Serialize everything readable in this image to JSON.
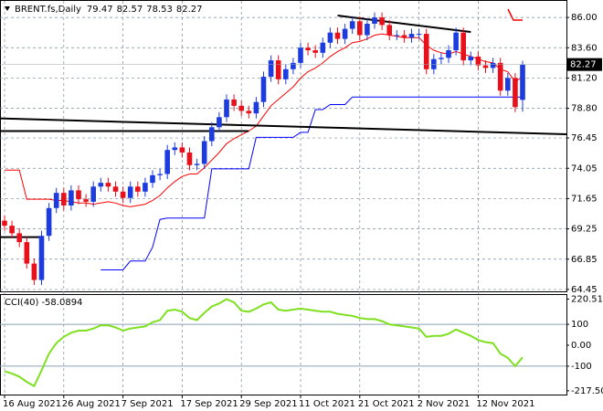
{
  "chart_data": [
    {
      "type": "candlestick",
      "title": "BRENT.fs,Daily",
      "categories": [
        "16 Aug 2021",
        null,
        null,
        null,
        null,
        null,
        null,
        null,
        "26 Aug 2021",
        null,
        null,
        null,
        null,
        null,
        null,
        null,
        "7 Sep 2021",
        null,
        null,
        null,
        null,
        null,
        null,
        null,
        "17 Sep 2021",
        null,
        null,
        null,
        null,
        null,
        null,
        null,
        "29 Sep 2021",
        null,
        null,
        null,
        null,
        null,
        null,
        null,
        "11 Oct 2021",
        null,
        null,
        null,
        null,
        null,
        null,
        null,
        "21 Oct 2021",
        null,
        null,
        null,
        null,
        null,
        null,
        null,
        "2 Nov 2021",
        null,
        null,
        null,
        null,
        null,
        null,
        null,
        "12 Nov 2021",
        null,
        null,
        null,
        null,
        null,
        null
      ],
      "open": [
        69.9,
        69.5,
        68.9,
        68.2,
        66.5,
        65.2,
        68.7,
        70.9,
        72.1,
        71.1,
        72.3,
        71.6,
        71.4,
        72.6,
        72.9,
        72.6,
        72.2,
        71.7,
        72.6,
        72.2,
        72.9,
        73.5,
        73.6,
        75.5,
        75.7,
        75.3,
        74.3,
        74.4,
        76.2,
        77.3,
        78.1,
        79.5,
        79.0,
        78.6,
        78.4,
        79.3,
        81.3,
        82.6,
        81.1,
        81.9,
        82.4,
        83.6,
        83.4,
        83.2,
        84.0,
        84.8,
        84.3,
        85.1,
        85.7,
        84.6,
        85.5,
        86.0,
        85.4,
        84.6,
        84.6,
        84.4,
        84.7,
        84.7,
        81.9,
        82.7,
        82.8,
        83.4,
        84.8,
        82.6,
        82.9,
        82.2,
        82.0,
        82.4,
        80.2,
        81.2,
        79.47
      ],
      "high": [
        70.3,
        69.9,
        69.3,
        68.6,
        66.9,
        69.1,
        71.3,
        72.5,
        72.5,
        72.7,
        72.7,
        72.0,
        73.0,
        73.3,
        73.3,
        73.0,
        72.6,
        73.0,
        73.0,
        73.3,
        73.9,
        74.0,
        75.9,
        76.1,
        76.1,
        75.7,
        74.8,
        76.6,
        77.7,
        78.5,
        79.9,
        79.9,
        79.4,
        79.0,
        79.7,
        81.7,
        83.0,
        83.0,
        82.3,
        82.8,
        84.0,
        84.0,
        83.8,
        84.4,
        85.2,
        85.2,
        85.5,
        86.1,
        86.1,
        85.9,
        86.4,
        86.4,
        85.8,
        85.0,
        85.0,
        85.1,
        85.1,
        85.1,
        83.1,
        83.2,
        83.8,
        85.2,
        85.2,
        83.3,
        83.3,
        82.6,
        82.8,
        82.8,
        81.6,
        81.6,
        82.57
      ],
      "low": [
        69.1,
        68.5,
        67.8,
        66.1,
        64.8,
        64.8,
        68.3,
        70.5,
        70.7,
        70.7,
        71.2,
        71.0,
        71.0,
        72.2,
        72.2,
        71.8,
        71.3,
        71.3,
        71.8,
        71.8,
        72.5,
        73.1,
        73.2,
        75.1,
        74.9,
        73.9,
        73.9,
        74.0,
        75.8,
        76.9,
        77.7,
        78.6,
        78.2,
        78.0,
        78.0,
        78.9,
        80.9,
        80.7,
        80.7,
        81.5,
        82.0,
        83.0,
        82.8,
        82.8,
        83.6,
        83.9,
        83.9,
        84.7,
        84.2,
        84.2,
        85.1,
        85.0,
        84.2,
        84.2,
        84.0,
        84.0,
        84.3,
        81.5,
        81.5,
        82.3,
        82.4,
        83.0,
        82.2,
        82.2,
        81.8,
        81.6,
        81.6,
        79.8,
        79.8,
        78.5,
        78.53
      ],
      "close": [
        69.5,
        68.9,
        68.2,
        66.5,
        65.2,
        68.7,
        70.9,
        72.1,
        71.1,
        72.3,
        71.6,
        71.4,
        72.6,
        72.9,
        72.6,
        72.2,
        71.7,
        72.6,
        72.2,
        72.9,
        73.5,
        73.6,
        75.5,
        75.7,
        75.3,
        74.3,
        74.4,
        76.2,
        77.3,
        78.1,
        79.5,
        79.0,
        78.6,
        78.4,
        79.3,
        81.3,
        82.6,
        81.1,
        81.9,
        82.4,
        83.6,
        83.4,
        83.2,
        84.0,
        84.8,
        84.3,
        85.1,
        85.7,
        84.6,
        85.5,
        86.0,
        85.4,
        84.6,
        84.6,
        84.4,
        84.7,
        84.7,
        81.9,
        82.7,
        82.8,
        83.4,
        84.8,
        82.6,
        82.9,
        82.2,
        82.0,
        82.4,
        80.2,
        81.2,
        78.9,
        82.27
      ],
      "up_color": "#1c3ce0",
      "down_color": "#e8101a",
      "series": [
        {
          "color": "#ff0000",
          "values": [
            73.9,
            73.9,
            73.9,
            71.6,
            71.6,
            71.6,
            71.6,
            71.5,
            71.5,
            71.4,
            71.3,
            71.3,
            71.2,
            71.3,
            71.4,
            71.3,
            71.1,
            71.0,
            71.1,
            71.2,
            71.5,
            71.9,
            72.5,
            73.0,
            73.4,
            73.6,
            73.6,
            74.1,
            74.7,
            75.3,
            76.0,
            76.4,
            76.7,
            77.0,
            77.4,
            78.2,
            79.0,
            79.5,
            80.0,
            80.5,
            81.2,
            81.7,
            82.0,
            82.4,
            82.9,
            83.3,
            83.6,
            84.0,
            84.1,
            84.3,
            84.6,
            84.7,
            84.6,
            84.5,
            84.4,
            84.4,
            84.4,
            83.8,
            83.4,
            83.2,
            83.1,
            83.3,
            83.1,
            82.9,
            82.7,
            82.5,
            82.4,
            81.9,
            81.7,
            80.9,
            81.3
          ]
        },
        {
          "color": "#0000ff",
          "values": [
            null,
            null,
            null,
            null,
            null,
            null,
            null,
            null,
            null,
            null,
            null,
            null,
            null,
            66.0,
            66.0,
            66.0,
            66.0,
            66.7,
            66.7,
            66.7,
            67.8,
            70.0,
            70.1,
            70.1,
            70.1,
            70.1,
            70.1,
            70.1,
            74.0,
            74.0,
            74.0,
            74.0,
            74.0,
            74.0,
            76.5,
            76.5,
            76.5,
            76.5,
            76.5,
            76.5,
            76.9,
            76.9,
            78.7,
            78.7,
            79.1,
            79.1,
            79.1,
            79.7,
            79.7,
            79.7,
            79.7,
            79.7,
            79.7,
            79.7,
            79.7,
            79.7,
            79.7,
            79.7,
            79.7,
            79.7,
            79.7,
            79.7,
            79.7,
            79.7,
            79.7,
            79.7,
            79.7,
            79.7,
            79.7,
            79.7,
            79.7
          ]
        }
      ],
      "trendlines": [
        {
          "color": "#000000",
          "x": [
            -1,
            33
          ],
          "y": [
            77.0,
            77.0
          ]
        },
        {
          "color": "#000000",
          "x": [
            -1,
            76
          ],
          "y": [
            78.0,
            76.75
          ]
        },
        {
          "color": "#000000",
          "x": [
            45,
            63
          ],
          "y": [
            86.15,
            84.85
          ]
        },
        {
          "color": "#000000",
          "x": [
            -1,
            5
          ],
          "y": [
            68.6,
            68.6
          ]
        }
      ],
      "ylim": [
        64.3,
        87.31
      ],
      "yticks": [
        {
          "value": 86,
          "label": "86.00"
        },
        {
          "value": 83.6,
          "label": "83.60"
        },
        {
          "value": 81.2,
          "label": "81.20"
        },
        {
          "value": 78.8,
          "label": "78.80"
        },
        76.45,
        74.05,
        71.65,
        69.25,
        66.85,
        64.45
      ],
      "grid": true
    },
    {
      "type": "line",
      "title": "CCI(40)",
      "color": "#7fe020",
      "values": [
        -125,
        -135,
        -150,
        -175,
        -195,
        -120,
        -40,
        10,
        40,
        60,
        70,
        70,
        80,
        95,
        95,
        85,
        70,
        80,
        85,
        90,
        110,
        120,
        165,
        170,
        160,
        130,
        120,
        155,
        185,
        200,
        220,
        205,
        165,
        160,
        175,
        195,
        205,
        170,
        165,
        170,
        175,
        170,
        165,
        160,
        160,
        150,
        145,
        140,
        130,
        125,
        125,
        115,
        100,
        95,
        90,
        85,
        80,
        40,
        45,
        45,
        55,
        75,
        60,
        45,
        25,
        15,
        10,
        -40,
        -60,
        -100,
        -58.0894
      ],
      "ylim": [
        -240,
        240
      ],
      "yticks": [
        220.5184,
        100,
        {
          "value": 0,
          "label": "0.00"
        },
        -100,
        -217.505
      ]
    }
  ]
}
